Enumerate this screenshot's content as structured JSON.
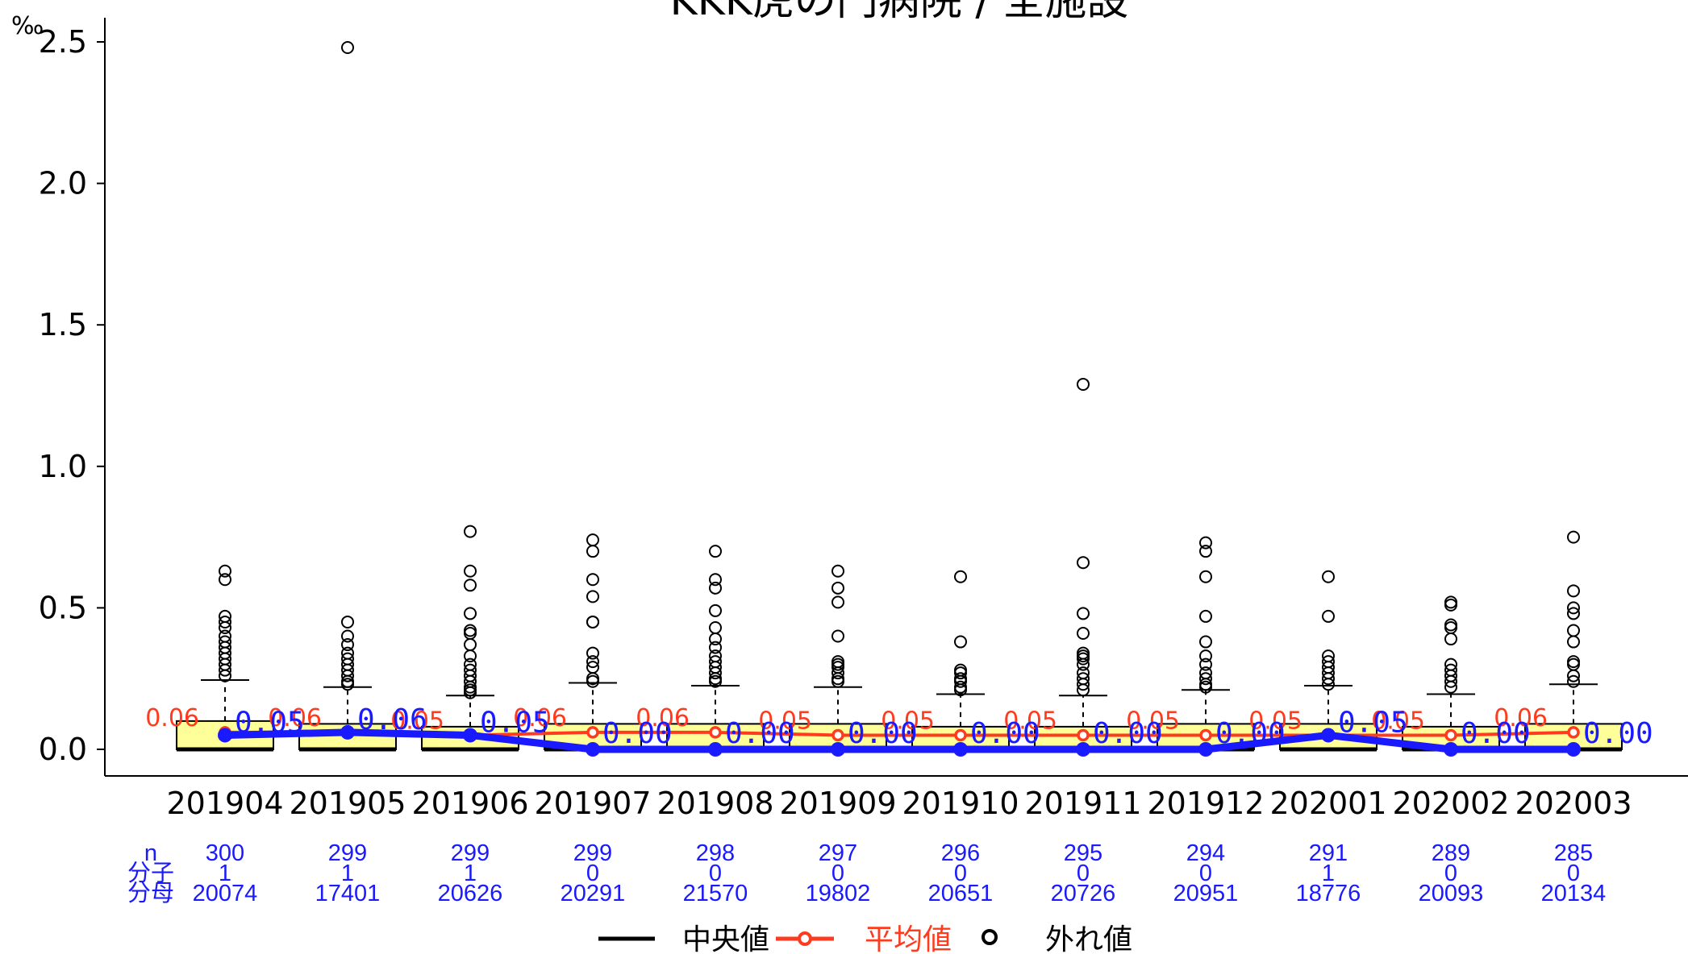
{
  "chart_data": {
    "type": "box",
    "title": "KKK虎の門病院 / 全施設",
    "y_unit": "‰",
    "ylim": [
      0,
      2.5
    ],
    "yticks": [
      "0.0",
      "0.5",
      "1.0",
      "1.5",
      "2.0",
      "2.5"
    ],
    "ytick_values": [
      0,
      0.5,
      1.0,
      1.5,
      2.0,
      2.5
    ],
    "categories": [
      "201904",
      "201905",
      "201906",
      "201907",
      "201908",
      "201909",
      "201910",
      "201911",
      "201912",
      "202001",
      "202002",
      "202003"
    ],
    "box_fill": "#ffff99",
    "boxes": [
      {
        "q1": 0,
        "median": 0,
        "q3": 0.1,
        "whisker_high": 0.245
      },
      {
        "q1": 0,
        "median": 0,
        "q3": 0.09,
        "whisker_high": 0.22
      },
      {
        "q1": 0,
        "median": 0,
        "q3": 0.08,
        "whisker_high": 0.19
      },
      {
        "q1": 0,
        "median": 0,
        "q3": 0.09,
        "whisker_high": 0.235
      },
      {
        "q1": 0,
        "median": 0,
        "q3": 0.09,
        "whisker_high": 0.225
      },
      {
        "q1": 0,
        "median": 0,
        "q3": 0.09,
        "whisker_high": 0.22
      },
      {
        "q1": 0,
        "median": 0,
        "q3": 0.08,
        "whisker_high": 0.195
      },
      {
        "q1": 0,
        "median": 0,
        "q3": 0.08,
        "whisker_high": 0.19
      },
      {
        "q1": 0,
        "median": 0,
        "q3": 0.09,
        "whisker_high": 0.21
      },
      {
        "q1": 0,
        "median": 0,
        "q3": 0.09,
        "whisker_high": 0.225
      },
      {
        "q1": 0,
        "median": 0,
        "q3": 0.08,
        "whisker_high": 0.195
      },
      {
        "q1": 0,
        "median": 0,
        "q3": 0.09,
        "whisker_high": 0.23
      }
    ],
    "outliers": [
      [
        0.63,
        0.6,
        0.47,
        0.45,
        0.43,
        0.4,
        0.38,
        0.36,
        0.34,
        0.32,
        0.3,
        0.28,
        0.26
      ],
      [
        2.48,
        0.45,
        0.4,
        0.37,
        0.34,
        0.32,
        0.3,
        0.28,
        0.26,
        0.24,
        0.23
      ],
      [
        0.77,
        0.63,
        0.58,
        0.48,
        0.42,
        0.41,
        0.37,
        0.33,
        0.3,
        0.28,
        0.26,
        0.24,
        0.22,
        0.21,
        0.2
      ],
      [
        0.74,
        0.7,
        0.6,
        0.54,
        0.45,
        0.45,
        0.34,
        0.31,
        0.29,
        0.25,
        0.24
      ],
      [
        0.7,
        0.6,
        0.57,
        0.49,
        0.43,
        0.39,
        0.36,
        0.33,
        0.31,
        0.29,
        0.27,
        0.25,
        0.24
      ],
      [
        0.63,
        0.57,
        0.52,
        0.4,
        0.31,
        0.3,
        0.29,
        0.27,
        0.25,
        0.24
      ],
      [
        0.61,
        0.38,
        0.28,
        0.27,
        0.25,
        0.24,
        0.22,
        0.21
      ],
      [
        1.29,
        0.66,
        0.48,
        0.41,
        0.34,
        0.33,
        0.32,
        0.3,
        0.27,
        0.25,
        0.23,
        0.21
      ],
      [
        0.73,
        0.7,
        0.61,
        0.47,
        0.38,
        0.33,
        0.3,
        0.27,
        0.25,
        0.23,
        0.22
      ],
      [
        0.61,
        0.47,
        0.33,
        0.31,
        0.29,
        0.27,
        0.25,
        0.23
      ],
      [
        0.52,
        0.51,
        0.44,
        0.43,
        0.39,
        0.3,
        0.28,
        0.26,
        0.24,
        0.22
      ],
      [
        0.75,
        0.56,
        0.5,
        0.48,
        0.42,
        0.38,
        0.31,
        0.3,
        0.26,
        0.24
      ]
    ],
    "mean": [
      0.06,
      0.06,
      0.05,
      0.06,
      0.06,
      0.05,
      0.05,
      0.05,
      0.05,
      0.05,
      0.05,
      0.06
    ],
    "mean_labels": [
      "0.06",
      "0.06",
      "0.05",
      "0.06",
      "0.06",
      "0.05",
      "0.05",
      "0.05",
      "0.05",
      "0.05",
      "0.05",
      "0.06"
    ],
    "median_line": [
      0.05,
      0.06,
      0.05,
      0.0,
      0.0,
      0.0,
      0.0,
      0.0,
      0.0,
      0.05,
      0.0,
      0.0
    ],
    "median_line_labels": [
      "0.05",
      "0.06",
      "0.05",
      "0.00",
      "0.00",
      "0.00",
      "0.00",
      "0.00",
      "0.00",
      "0.05",
      "0.00",
      "0.00"
    ],
    "table_rows": [
      {
        "label": "n",
        "values": [
          "300",
          "299",
          "299",
          "299",
          "298",
          "297",
          "296",
          "295",
          "294",
          "291",
          "289",
          "285"
        ]
      },
      {
        "label": "分子",
        "values": [
          "1",
          "1",
          "1",
          "0",
          "0",
          "0",
          "0",
          "0",
          "0",
          "1",
          "0",
          "0"
        ]
      },
      {
        "label": "分母",
        "values": [
          "20074",
          "17401",
          "20626",
          "20291",
          "21570",
          "19802",
          "20651",
          "20726",
          "20951",
          "18776",
          "20093",
          "20134"
        ]
      }
    ],
    "legend": [
      {
        "label": "中央値",
        "color": "#000000",
        "symbol": "line"
      },
      {
        "label": "平均値",
        "color": "#ff3b1f",
        "symbol": "line-circle"
      },
      {
        "label": "外れ値",
        "color": "#000000",
        "symbol": "circle"
      }
    ],
    "colors": {
      "mean": "#ff3b1f",
      "median_line": "#1a1aff",
      "table": "#1a1aff",
      "box": "#ffff99"
    }
  }
}
